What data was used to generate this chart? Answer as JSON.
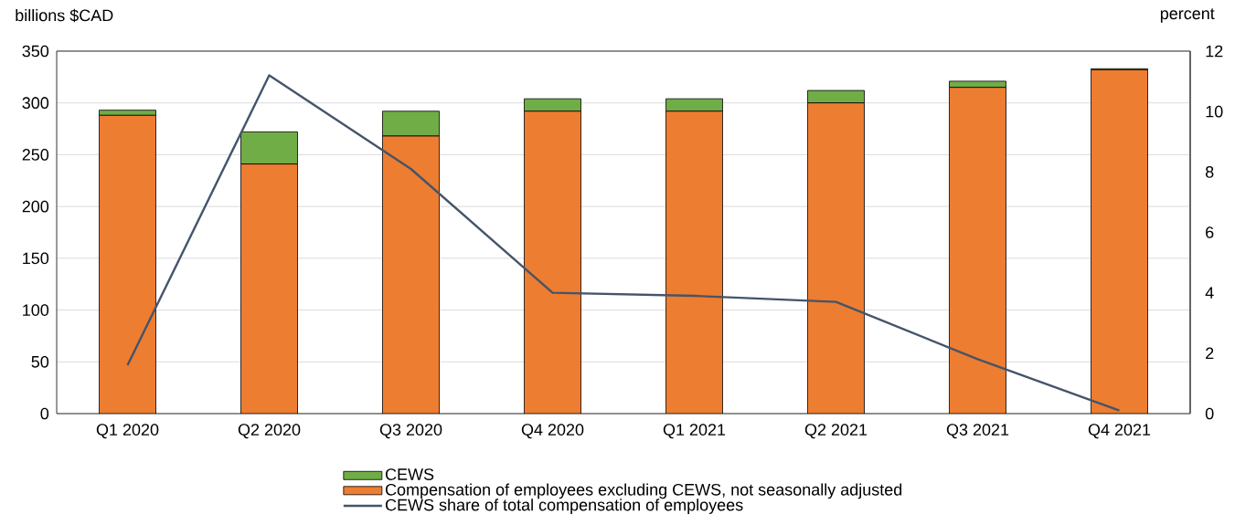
{
  "chart_data": {
    "type": "bar",
    "stacked": true,
    "categories": [
      "Q1 2020",
      "Q2 2020",
      "Q3 2020",
      "Q4 2020",
      "Q1 2021",
      "Q2 2021",
      "Q3 2021",
      "Q4 2021"
    ],
    "ylabel": "billions $CAD",
    "y2label": "percent",
    "ylim": [
      0,
      350
    ],
    "yticks": [
      0,
      50,
      100,
      150,
      200,
      250,
      300,
      350
    ],
    "y2lim": [
      0,
      12
    ],
    "y2ticks": [
      0,
      2,
      4,
      6,
      8,
      10,
      12
    ],
    "grid": "y",
    "legend": "bottom",
    "series": [
      {
        "name": "Compensation of employees excluding CEWS, not seasonally adjusted",
        "color": "#ed7d31",
        "values": [
          288,
          241,
          268,
          292,
          292,
          300,
          315,
          332
        ]
      },
      {
        "name": "CEWS",
        "color": "#70ad47",
        "values": [
          5,
          31,
          24,
          12,
          12,
          12,
          6,
          1
        ]
      },
      {
        "name": "CEWS share of total compensation of employees",
        "type": "line",
        "axis": "y2",
        "color": "#44546a",
        "values": [
          1.6,
          11.2,
          8.1,
          4.0,
          3.9,
          3.7,
          1.8,
          0.1
        ]
      }
    ]
  }
}
